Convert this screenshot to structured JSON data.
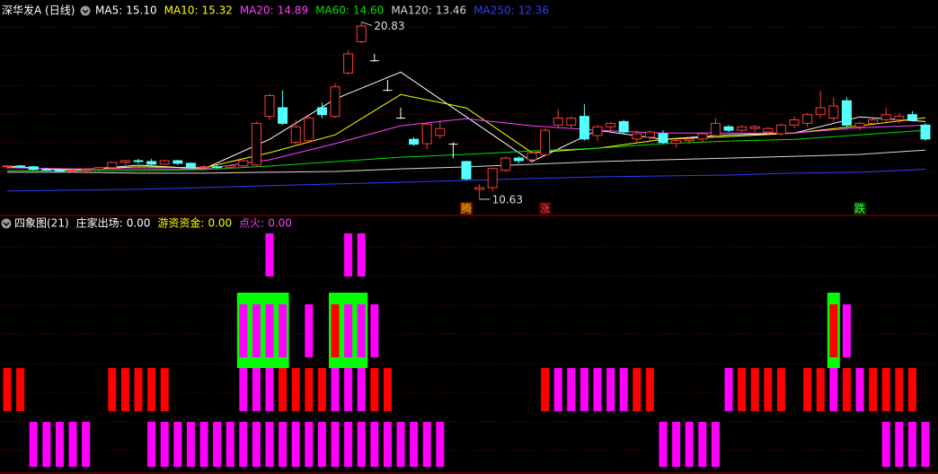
{
  "chart_data": [
    {
      "type": "candlestick",
      "title": "深华发A (日线)",
      "up_color": "#ff3c3c",
      "down_color": "#54ffff",
      "ylim": [
        9.8,
        22.1
      ],
      "open": [
        12.5,
        12.55,
        12.5,
        12.35,
        12.3,
        12.25,
        12.3,
        12.35,
        12.45,
        12.75,
        12.85,
        12.8,
        12.65,
        12.85,
        12.7,
        12.45,
        12.5,
        12.45,
        12.55,
        12.6,
        15.4,
        15.9,
        13.9,
        14.0,
        15.9,
        15.4,
        17.9,
        19.7,
        18.6,
        16.9,
        15.3,
        14.08,
        13.83,
        14.3,
        13.8,
        12.8,
        11.2,
        11.3,
        12.3,
        13.0,
        12.9,
        13.2,
        14.9,
        14.9,
        15.4,
        14.3,
        14.8,
        15.1,
        14.1,
        14.2,
        14.4,
        13.85,
        14.0,
        14.1,
        14.3,
        14.8,
        14.6,
        14.7,
        14.5,
        14.4,
        14.9,
        15.0,
        15.5,
        15.3,
        16.3,
        14.8,
        15.0,
        15.2,
        15.2,
        15.5,
        14.9
      ],
      "high": [
        12.6,
        12.6,
        12.55,
        12.45,
        12.4,
        12.35,
        12.4,
        12.5,
        12.8,
        12.9,
        12.95,
        12.95,
        12.9,
        12.9,
        12.75,
        12.6,
        12.6,
        12.6,
        12.9,
        15.1,
        16.7,
        16.9,
        15.2,
        15.5,
        16.2,
        17.3,
        19.2,
        20.83,
        19.0,
        17.5,
        15.9,
        14.2,
        15.0,
        15.2,
        13.9,
        12.85,
        11.5,
        12.4,
        13.1,
        13.1,
        13.4,
        14.7,
        15.8,
        15.4,
        16.1,
        14.9,
        15.1,
        15.2,
        14.6,
        14.6,
        14.6,
        14.1,
        14.2,
        14.5,
        15.3,
        14.9,
        14.9,
        14.9,
        14.8,
        15.0,
        15.4,
        15.6,
        16.9,
        16.5,
        16.5,
        15.1,
        15.3,
        15.9,
        15.6,
        15.7,
        15.0
      ],
      "low": [
        12.4,
        12.45,
        12.3,
        12.25,
        12.2,
        12.15,
        12.2,
        12.3,
        12.4,
        12.6,
        12.7,
        12.6,
        12.6,
        12.6,
        12.4,
        12.35,
        12.4,
        12.4,
        12.5,
        12.5,
        15.2,
        14.9,
        13.7,
        13.9,
        15.3,
        15.3,
        17.8,
        19.6,
        18.55,
        16.85,
        15.25,
        13.7,
        13.5,
        14.1,
        13.0,
        11.7,
        10.63,
        11.1,
        12.2,
        12.7,
        12.8,
        13.1,
        14.7,
        14.7,
        14.0,
        14.0,
        14.5,
        14.4,
        13.9,
        14.0,
        13.8,
        13.6,
        13.8,
        13.9,
        14.2,
        14.5,
        14.5,
        14.5,
        14.3,
        14.3,
        14.7,
        14.8,
        15.3,
        15.1,
        14.8,
        14.6,
        14.9,
        15.1,
        15.0,
        15.1,
        14.0
      ],
      "close": [
        12.55,
        12.5,
        12.35,
        12.3,
        12.25,
        12.3,
        12.35,
        12.45,
        12.75,
        12.85,
        12.8,
        12.65,
        12.85,
        12.7,
        12.45,
        12.5,
        12.45,
        12.55,
        12.85,
        15.0,
        16.6,
        15.0,
        14.8,
        15.3,
        15.5,
        17.1,
        19.0,
        20.6,
        18.6,
        16.9,
        15.3,
        13.8,
        14.95,
        14.7,
        13.8,
        11.8,
        11.3,
        12.4,
        13.0,
        12.85,
        13.3,
        14.6,
        15.3,
        15.3,
        14.1,
        14.8,
        15.0,
        14.5,
        14.4,
        14.5,
        13.9,
        14.0,
        14.1,
        14.4,
        15.0,
        14.6,
        14.8,
        14.8,
        14.7,
        14.9,
        15.2,
        15.5,
        15.9,
        16.0,
        14.9,
        15.0,
        15.2,
        15.5,
        15.4,
        15.2,
        14.1
      ],
      "series": [
        {
          "name": "MA5:",
          "last": {
            "value": 15.1,
            "label": "15.10"
          },
          "color": "#ffffff",
          "x": [
            0,
            5,
            10,
            15,
            20,
            25,
            30,
            35,
            40,
            45,
            50,
            55,
            60,
            65,
            70
          ],
          "values": [
            12.54,
            12.28,
            12.59,
            12.38,
            14.08,
            16.4,
            17.95,
            15.37,
            12.8,
            14.6,
            14.08,
            14.34,
            14.44,
            15.37,
            15.1
          ]
        },
        {
          "name": "MA10:",
          "last": {
            "value": 15.32,
            "label": "15.32"
          },
          "color": "#ffff00",
          "x": [
            0,
            5,
            10,
            15,
            20,
            25,
            30,
            35,
            40,
            45,
            50,
            55,
            60,
            65,
            70
          ],
          "values": [
            12.49,
            12.33,
            12.49,
            12.44,
            13.31,
            14.34,
            16.66,
            15.89,
            13.31,
            13.57,
            14.08,
            14.24,
            14.44,
            14.86,
            15.32
          ]
        },
        {
          "name": "MA20:",
          "last": {
            "value": 14.89,
            "label": "14.89"
          },
          "color": "#ff40ff",
          "x": [
            0,
            5,
            10,
            15,
            20,
            25,
            30,
            35,
            40,
            45,
            50,
            55,
            60,
            65,
            70
          ],
          "values": [
            12.44,
            12.38,
            12.38,
            12.38,
            12.9,
            13.83,
            14.86,
            15.27,
            14.86,
            14.6,
            14.44,
            14.44,
            14.44,
            14.75,
            14.89
          ]
        },
        {
          "name": "MA60:",
          "last": {
            "value": 14.6,
            "label": "14.60"
          },
          "color": "#00e000",
          "x": [
            0,
            5,
            10,
            15,
            20,
            25,
            30,
            35,
            40,
            45,
            50,
            55,
            60,
            65,
            70
          ],
          "values": [
            12.28,
            12.28,
            12.28,
            12.33,
            12.54,
            12.8,
            13.05,
            13.21,
            13.41,
            13.57,
            13.83,
            13.98,
            14.08,
            14.34,
            14.6
          ]
        },
        {
          "name": "MA120:",
          "last": {
            "value": 13.46,
            "label": "13.46"
          },
          "color": "#d8d8d8",
          "x": [
            0,
            5,
            10,
            15,
            20,
            25,
            30,
            35,
            40,
            45,
            50,
            55,
            60,
            65,
            70
          ],
          "values": [
            12.18,
            12.18,
            12.13,
            12.13,
            12.18,
            12.23,
            12.38,
            12.49,
            12.64,
            12.8,
            12.9,
            13.0,
            13.1,
            13.21,
            13.46
          ]
        },
        {
          "name": "MA250:",
          "last": {
            "value": 12.36,
            "label": "12.36"
          },
          "color": "#2f3cff",
          "x": [
            0,
            5,
            10,
            15,
            20,
            25,
            30,
            35,
            40,
            45,
            50,
            55,
            60,
            65,
            70
          ],
          "values": [
            11.1,
            11.15,
            11.2,
            11.3,
            11.41,
            11.51,
            11.61,
            11.71,
            11.82,
            11.92,
            11.97,
            12.02,
            12.13,
            12.18,
            12.36
          ]
        }
      ],
      "signals": {
        "x": [
          35,
          41,
          65
        ],
        "labels": [
          "腾",
          "涨",
          "跌"
        ],
        "colors": [
          "#ffc000",
          "#ff4040",
          "#40ff40"
        ],
        "backgrounds": [
          "#6a1a00",
          "#3a0000",
          "#003a00"
        ]
      }
    },
    {
      "type": "signal_bars",
      "title": "四象图(21)",
      "indicators": [
        {
          "name": "庄家出场:",
          "last": {
            "value": 0,
            "label": "0.00"
          },
          "color": "#ffffff"
        },
        {
          "name": "游资资金:",
          "last": {
            "value": 0,
            "label": "0.00"
          },
          "color": "#ffff00"
        },
        {
          "name": "点火:",
          "last": {
            "value": 0,
            "label": "0.00"
          },
          "color": "#ff40ff"
        }
      ],
      "palette": [
        "#ff00ff",
        "#ff0000"
      ],
      "box_color": "#00ff00",
      "rows": [
        [
          0,
          0,
          0,
          0,
          0,
          0,
          0,
          0,
          0,
          0,
          0,
          0,
          0,
          0,
          0,
          0,
          0,
          0,
          0,
          0,
          1,
          0,
          0,
          0,
          0,
          0,
          1,
          1,
          0,
          0,
          0,
          0,
          0,
          0,
          0,
          0,
          0,
          0,
          0,
          0,
          0,
          0,
          0,
          0,
          0,
          0,
          0,
          0,
          0,
          0,
          0,
          0,
          0,
          0,
          0,
          0,
          0,
          0,
          0,
          0,
          0,
          0,
          0,
          0,
          0,
          0,
          0,
          0,
          0,
          0,
          0
        ],
        [
          0,
          0,
          0,
          0,
          0,
          0,
          0,
          0,
          0,
          0,
          0,
          0,
          0,
          0,
          0,
          0,
          0,
          0,
          3,
          3,
          3,
          3,
          0,
          1,
          0,
          4,
          3,
          3,
          1,
          0,
          0,
          0,
          0,
          0,
          0,
          0,
          0,
          0,
          0,
          0,
          0,
          0,
          0,
          0,
          0,
          0,
          0,
          0,
          0,
          0,
          0,
          0,
          0,
          0,
          0,
          0,
          0,
          0,
          0,
          0,
          0,
          0,
          0,
          4,
          1,
          0,
          0,
          0,
          0,
          0,
          0
        ],
        [
          2,
          2,
          0,
          0,
          0,
          0,
          0,
          0,
          2,
          2,
          2,
          2,
          2,
          0,
          0,
          0,
          0,
          0,
          1,
          1,
          1,
          2,
          2,
          2,
          2,
          1,
          1,
          1,
          2,
          2,
          0,
          0,
          0,
          0,
          0,
          0,
          0,
          0,
          0,
          0,
          0,
          2,
          1,
          1,
          1,
          1,
          1,
          1,
          2,
          2,
          0,
          0,
          0,
          0,
          0,
          1,
          2,
          2,
          2,
          2,
          0,
          2,
          2,
          1,
          2,
          1,
          2,
          2,
          2,
          2,
          0
        ],
        [
          0,
          0,
          1,
          1,
          1,
          1,
          1,
          0,
          0,
          0,
          0,
          1,
          1,
          1,
          1,
          1,
          1,
          1,
          1,
          1,
          1,
          1,
          1,
          1,
          1,
          1,
          1,
          1,
          1,
          1,
          1,
          1,
          1,
          1,
          0,
          0,
          0,
          0,
          0,
          0,
          0,
          0,
          0,
          0,
          0,
          0,
          0,
          0,
          0,
          0,
          1,
          1,
          1,
          1,
          1,
          0,
          0,
          0,
          0,
          0,
          0,
          0,
          0,
          0,
          0,
          0,
          0,
          1,
          1,
          1,
          1
        ]
      ]
    }
  ]
}
